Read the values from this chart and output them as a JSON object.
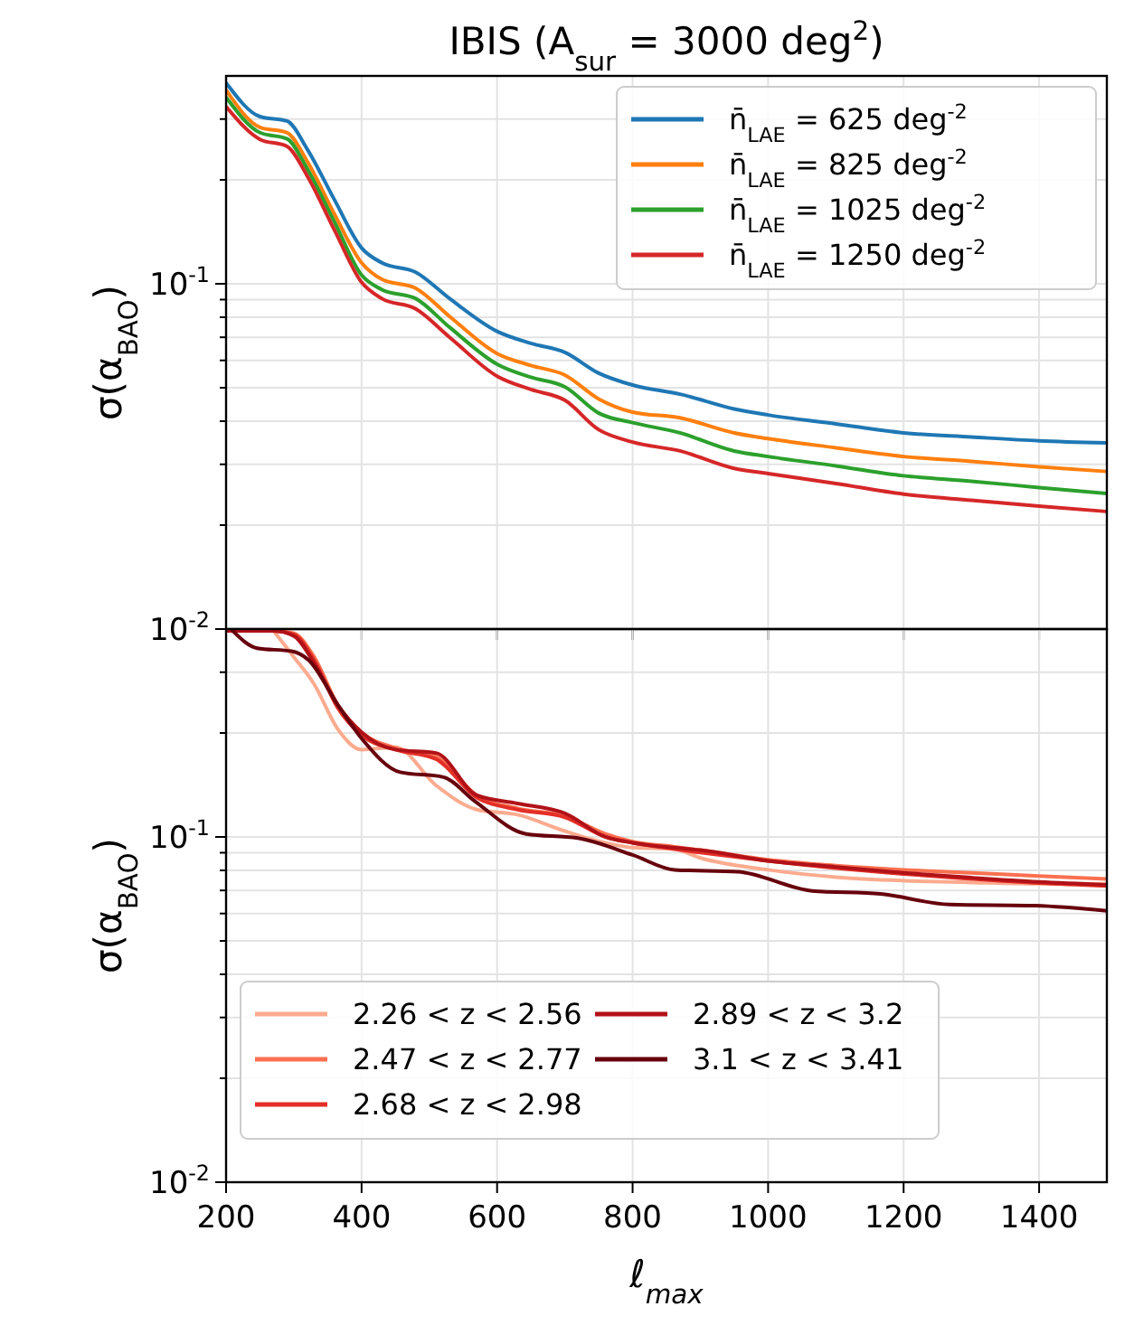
{
  "chart_data": [
    {
      "type": "line",
      "title": "IBIS (A$_{sur}$ = 3000 deg$^{2}$)",
      "ylabel": "σ(α$_{BAO}$)",
      "log": "y",
      "grid": true,
      "legend": "top right",
      "tick_labels": "y",
      "x": [
        200,
        250,
        290,
        320,
        360,
        400,
        430,
        480,
        530,
        600,
        650,
        700,
        750,
        800,
        870,
        950,
        1000,
        1100,
        1200,
        1300,
        1400,
        1500
      ],
      "xlim": [
        200,
        1500
      ],
      "xticks": [
        200,
        400,
        600,
        800,
        1000,
        1200,
        1400
      ],
      "ylim": [
        0.01,
        0.4
      ],
      "yticks": [
        {
          "value": 0.01,
          "label": "10$^{-2}$"
        },
        {
          "value": 0.02,
          "label": null
        },
        {
          "value": 0.03,
          "label": null
        },
        {
          "value": 0.04,
          "label": null
        },
        {
          "value": 0.05,
          "label": null
        },
        {
          "value": 0.06,
          "label": null
        },
        {
          "value": 0.07,
          "label": null
        },
        {
          "value": 0.08,
          "label": null
        },
        {
          "value": 0.09,
          "label": null
        },
        {
          "value": 0.1,
          "label": "10$^{-1}$"
        },
        {
          "value": 0.2,
          "label": null
        },
        {
          "value": 0.3,
          "label": null
        }
      ],
      "series": [
        {
          "name": "n̄$_{LAE}$ = 625 deg$^{-2}$",
          "color": "#1f77b4",
          "values": [
            0.382,
            0.305,
            0.296,
            0.245,
            0.175,
            0.127,
            0.115,
            0.108,
            0.0906,
            0.0728,
            0.0672,
            0.0633,
            0.0551,
            0.0509,
            0.0479,
            0.0434,
            0.0417,
            0.0393,
            0.037,
            0.036,
            0.0351,
            0.0346
          ]
        },
        {
          "name": "n̄$_{LAE}$ = 825 deg$^{-2}$",
          "color": "#ff7f0e",
          "values": [
            0.364,
            0.284,
            0.274,
            0.226,
            0.159,
            0.115,
            0.103,
            0.097,
            0.0804,
            0.0628,
            0.058,
            0.0544,
            0.0464,
            0.0425,
            0.0409,
            0.037,
            0.0356,
            0.0335,
            0.0316,
            0.0306,
            0.0295,
            0.0286
          ]
        },
        {
          "name": "n̄$_{LAE}$ = 1025 deg$^{-2}$",
          "color": "#2ca02c",
          "values": [
            0.347,
            0.274,
            0.263,
            0.215,
            0.151,
            0.106,
            0.0962,
            0.0906,
            0.0748,
            0.0585,
            0.0536,
            0.0503,
            0.0422,
            0.0396,
            0.037,
            0.0328,
            0.0316,
            0.0297,
            0.0278,
            0.0268,
            0.0257,
            0.0247
          ]
        },
        {
          "name": "n̄$_{LAE}$ = 1250 deg$^{-2}$",
          "color": "#d62728",
          "values": [
            0.326,
            0.262,
            0.25,
            0.205,
            0.143,
            0.101,
            0.0906,
            0.0846,
            0.07,
            0.054,
            0.0494,
            0.046,
            0.0378,
            0.0348,
            0.0328,
            0.0292,
            0.0282,
            0.0264,
            0.0246,
            0.0236,
            0.0227,
            0.0219
          ]
        }
      ]
    },
    {
      "type": "line",
      "ylabel": "σ(α$_{BAO}$)",
      "xlabel": "ℓ$_{max}$",
      "log": "y",
      "grid": true,
      "legend": "bottom left",
      "x": [
        200,
        270,
        300,
        330,
        365,
        400,
        450,
        510,
        570,
        630,
        700,
        760,
        800,
        860,
        900,
        1000,
        1100,
        1200,
        1300,
        1400,
        1500
      ],
      "xlim": [
        200,
        1500
      ],
      "xticks": [
        200,
        400,
        600,
        800,
        1000,
        1200,
        1400
      ],
      "ylim": [
        0.01,
        0.4
      ],
      "yticks": [
        {
          "value": 0.01,
          "label": "10$^{-2}$"
        },
        {
          "value": 0.02,
          "label": null
        },
        {
          "value": 0.03,
          "label": null
        },
        {
          "value": 0.04,
          "label": null
        },
        {
          "value": 0.05,
          "label": null
        },
        {
          "value": 0.06,
          "label": null
        },
        {
          "value": 0.07,
          "label": null
        },
        {
          "value": 0.08,
          "label": null
        },
        {
          "value": 0.09,
          "label": null
        },
        {
          "value": 0.1,
          "label": "10$^{-1}$"
        },
        {
          "value": 0.2,
          "label": null
        },
        {
          "value": 0.3,
          "label": null
        }
      ],
      "series": [
        {
          "name": "2.26 < z < 2.56",
          "color": "#fcab8f",
          "values": [
            null,
            0.395,
            0.332,
            0.277,
            0.205,
            0.179,
            0.182,
            0.141,
            0.12,
            0.116,
            0.104,
            0.0962,
            0.0931,
            0.0923,
            0.0869,
            0.0803,
            0.0765,
            0.0747,
            0.0738,
            0.0732,
            0.0732
          ]
        },
        {
          "name": "2.47 < z < 2.77",
          "color": "#fb7050",
          "values": [
            null,
            0.395,
            0.389,
            0.332,
            0.241,
            0.201,
            0.181,
            0.171,
            0.132,
            0.121,
            0.115,
            0.102,
            0.0969,
            0.0938,
            0.0916,
            0.0859,
            0.0826,
            0.0803,
            0.0787,
            0.0771,
            0.0756
          ]
        },
        {
          "name": "2.68 < z < 2.98",
          "color": "#e32f27",
          "values": [
            0.395,
            0.395,
            0.386,
            0.325,
            0.236,
            0.197,
            0.179,
            0.168,
            0.13,
            0.12,
            0.114,
            0.1,
            0.0962,
            0.0923,
            0.0901,
            0.0852,
            0.0812,
            0.0781,
            0.0756,
            0.0735,
            0.0721
          ]
        },
        {
          "name": "2.89 < z < 3.2",
          "color": "#b11218",
          "values": [
            0.395,
            0.395,
            0.382,
            0.319,
            0.241,
            0.201,
            0.179,
            0.175,
            0.132,
            0.125,
            0.117,
            0.1,
            0.0962,
            0.0931,
            0.0916,
            0.0852,
            0.0819,
            0.0787,
            0.0762,
            0.0741,
            0.0727
          ]
        },
        {
          "name": "3.1 < z < 3.41",
          "color": "#67000d",
          "x": [
            210,
            246,
            297,
            322,
            365,
            400,
            457,
            521,
            567,
            643,
            719,
            800,
            862,
            955,
            1065,
            1166,
            1268,
            1394,
            1500
          ],
          "values": [
            0.395,
            0.352,
            0.345,
            0.325,
            0.241,
            0.193,
            0.154,
            0.149,
            0.127,
            0.102,
            0.0992,
            0.0887,
            0.0803,
            0.0793,
            0.0698,
            0.0684,
            0.0637,
            0.0632,
            0.0611
          ]
        }
      ]
    }
  ]
}
